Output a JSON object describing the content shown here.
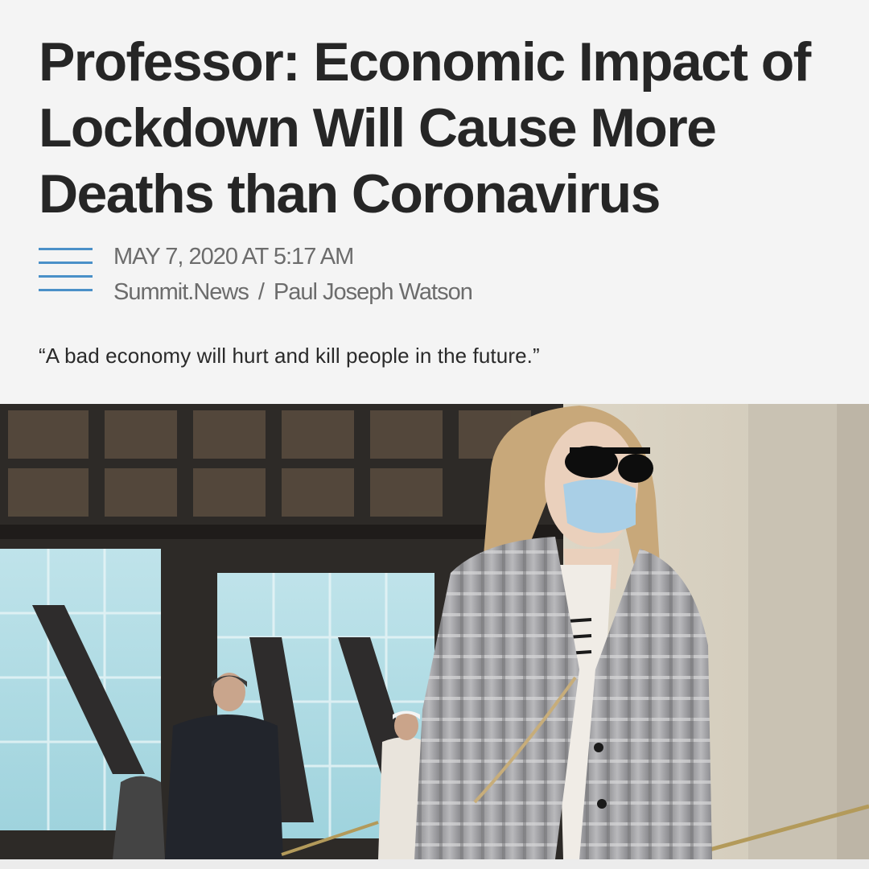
{
  "article": {
    "headline": "Professor: Economic Impact of Lockdown Will Cause More Deaths than Coronavirus",
    "date": "MAY 7, 2020 AT 5:17 AM",
    "source": "Summit.News",
    "separator": "/",
    "author": "Paul Joseph Watson",
    "quote": "“A bad economy will hurt and kill people in the future.”"
  },
  "icons": {
    "menu": "hamburger-lines-icon"
  },
  "colors": {
    "headline": "#262626",
    "meta": "#6c6c6c",
    "menu_lines": "#4a90c8",
    "background": "#f4f4f4"
  }
}
